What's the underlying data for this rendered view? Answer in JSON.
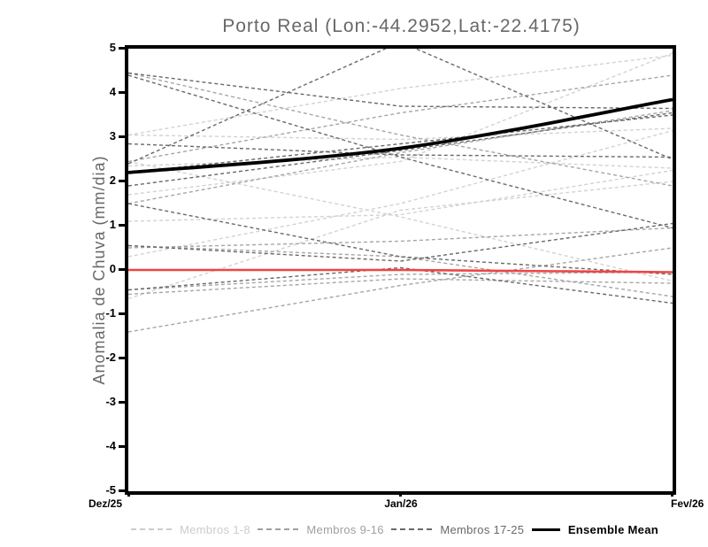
{
  "chart_data": {
    "type": "line",
    "title": "Porto Real (Lon:-44.2952,Lat:-22.4175)",
    "ylabel": "Anomalia de Chuva (mm/dia)",
    "xlabel": "",
    "ylim": [
      -5,
      5
    ],
    "yticks": [
      5,
      4,
      3,
      2,
      1,
      0,
      -1,
      -2,
      -3,
      -4,
      -5
    ],
    "x_tick_labels": [
      "Dez/25",
      "Jan/26",
      "Fev/26"
    ],
    "grid": false,
    "legend_position": "bottom",
    "colors": {
      "background": "#ffffff",
      "frame": "#000000",
      "title": "#686868",
      "axis_label": "#686868",
      "tick_label": "#000000",
      "zero_line": "#f04444",
      "ensemble_mean": "#000000"
    },
    "groups": {
      "1-8": {
        "label": "Membros 1-8",
        "color": "#d2d2d2"
      },
      "9-16": {
        "label": "Membros 9-16",
        "color": "#a6a6a6"
      },
      "17-25": {
        "label": "Membros 17-25",
        "color": "#696969"
      }
    },
    "legend": [
      {
        "label": "Membros 1-8",
        "color": "#cccccc",
        "style": "dashed"
      },
      {
        "label": "Membros 9-16",
        "color": "#a0a0a0",
        "style": "dashed"
      },
      {
        "label": "Membros 17-25",
        "color": "#696969",
        "style": "dashed"
      },
      {
        "label": "Ensemble Mean",
        "color": "#000000",
        "style": "solid"
      }
    ],
    "series": {
      "members": [
        {
          "group": "1-8",
          "values": [
            3.05,
            2.95,
            3.2
          ]
        },
        {
          "group": "1-8",
          "values": [
            2.45,
            1.2,
            -0.25
          ]
        },
        {
          "group": "1-8",
          "values": [
            2.35,
            2.55,
            2.3
          ]
        },
        {
          "group": "1-8",
          "values": [
            1.7,
            2.45,
            4.9
          ]
        },
        {
          "group": "1-8",
          "values": [
            1.1,
            1.25,
            2.25
          ]
        },
        {
          "group": "1-8",
          "values": [
            0.3,
            1.5,
            3.15
          ]
        },
        {
          "group": "1-8",
          "values": [
            -0.65,
            1.35,
            2.0
          ]
        },
        {
          "group": "1-8",
          "values": [
            3.05,
            4.1,
            4.85
          ]
        },
        {
          "group": "9-16",
          "values": [
            -1.4,
            -0.35,
            0.5
          ]
        },
        {
          "group": "9-16",
          "values": [
            4.45,
            3.05,
            1.9
          ]
        },
        {
          "group": "9-16",
          "values": [
            1.5,
            2.65,
            3.6
          ]
        },
        {
          "group": "9-16",
          "values": [
            0.55,
            0.3,
            -0.6
          ]
        },
        {
          "group": "9-16",
          "values": [
            0.5,
            0.65,
            0.95
          ]
        },
        {
          "group": "9-16",
          "values": [
            -0.45,
            -0.1,
            -0.05
          ]
        },
        {
          "group": "9-16",
          "values": [
            -0.55,
            -0.2,
            -0.3
          ]
        },
        {
          "group": "9-16",
          "values": [
            2.45,
            3.55,
            4.4
          ]
        },
        {
          "group": "17-25",
          "values": [
            4.45,
            3.7,
            3.65
          ]
        },
        {
          "group": "17-25",
          "values": [
            4.4,
            2.55,
            0.95
          ]
        },
        {
          "group": "17-25",
          "values": [
            2.4,
            5.15,
            2.5
          ]
        },
        {
          "group": "17-25",
          "values": [
            2.85,
            2.6,
            2.55
          ]
        },
        {
          "group": "17-25",
          "values": [
            1.9,
            2.7,
            3.55
          ]
        },
        {
          "group": "17-25",
          "values": [
            2.2,
            2.85,
            3.5
          ]
        },
        {
          "group": "17-25",
          "values": [
            0.55,
            0.2,
            1.05
          ]
        },
        {
          "group": "17-25",
          "values": [
            -0.45,
            0.05,
            -0.75
          ]
        },
        {
          "group": "17-25",
          "values": [
            1.5,
            0.3,
            -0.1
          ]
        }
      ],
      "ensemble_mean": {
        "label": "Ensemble Mean",
        "values": [
          2.2,
          2.75,
          3.85
        ]
      },
      "zero_line": {
        "values": [
          0,
          0,
          -0.05
        ]
      }
    }
  }
}
